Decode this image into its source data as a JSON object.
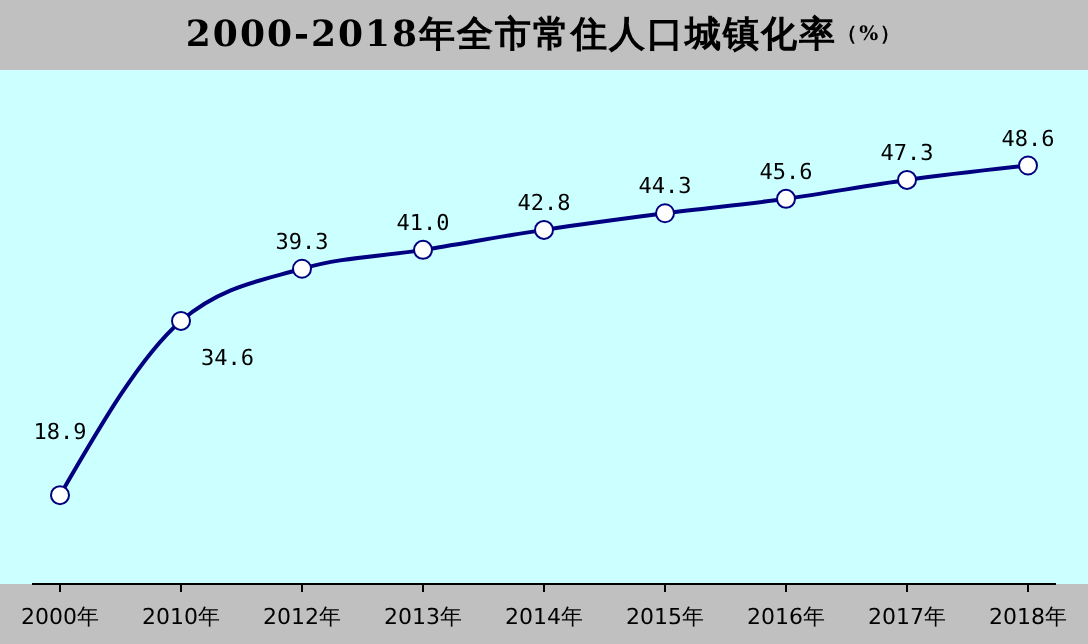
{
  "chart_data": {
    "type": "line",
    "title": "2000-2018年全市常住人口城镇化率",
    "subtitle": "（%）",
    "categories": [
      "2000年",
      "2010年",
      "2012年",
      "2013年",
      "2014年",
      "2015年",
      "2016年",
      "2017年",
      "2018年"
    ],
    "series": [
      {
        "color": "#000080",
        "values": [
          18.9,
          34.6,
          39.3,
          41.0,
          42.8,
          44.3,
          45.6,
          47.3,
          48.6
        ],
        "value_labels": [
          "18.9",
          "34.6",
          "39.3",
          "41.0",
          "42.8",
          "44.3",
          "45.6",
          "47.3",
          "48.6"
        ]
      }
    ],
    "marker": "circle"
  }
}
